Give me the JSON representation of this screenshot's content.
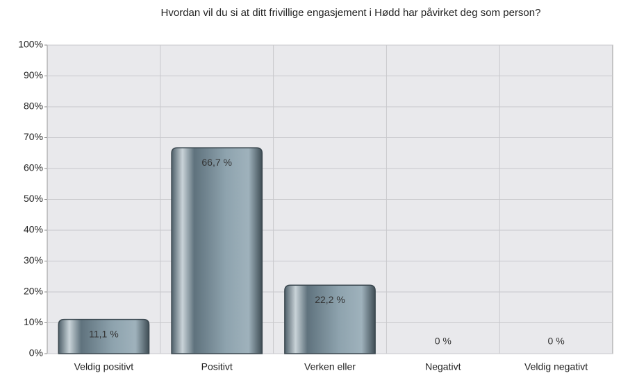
{
  "chart_data": {
    "type": "bar",
    "title": "Hvordan vil du si at ditt frivillige engasjement i Hødd har påvirket deg som person?",
    "categories": [
      "Veldig positivt",
      "Positivt",
      "Verken eller",
      "Negativt",
      "Veldig negativt"
    ],
    "values": [
      11.1,
      66.7,
      22.2,
      0,
      0
    ],
    "value_labels": [
      "11,1 %",
      "66,7 %",
      "22,2 %",
      "0 %",
      "0 %"
    ],
    "color": "#6f8592",
    "ylim": [
      0,
      100
    ],
    "yticks": [
      {
        "value": 0,
        "label": "0%"
      },
      {
        "value": 10,
        "label": "10%"
      },
      {
        "value": 20,
        "label": "20%"
      },
      {
        "value": 30,
        "label": "30%"
      },
      {
        "value": 40,
        "label": "40%"
      },
      {
        "value": 50,
        "label": "50%"
      },
      {
        "value": 60,
        "label": "60%"
      },
      {
        "value": 70,
        "label": "70%"
      },
      {
        "value": 80,
        "label": "80%"
      },
      {
        "value": 90,
        "label": "90%"
      },
      {
        "value": 100,
        "label": "100%"
      }
    ],
    "grid": true
  }
}
